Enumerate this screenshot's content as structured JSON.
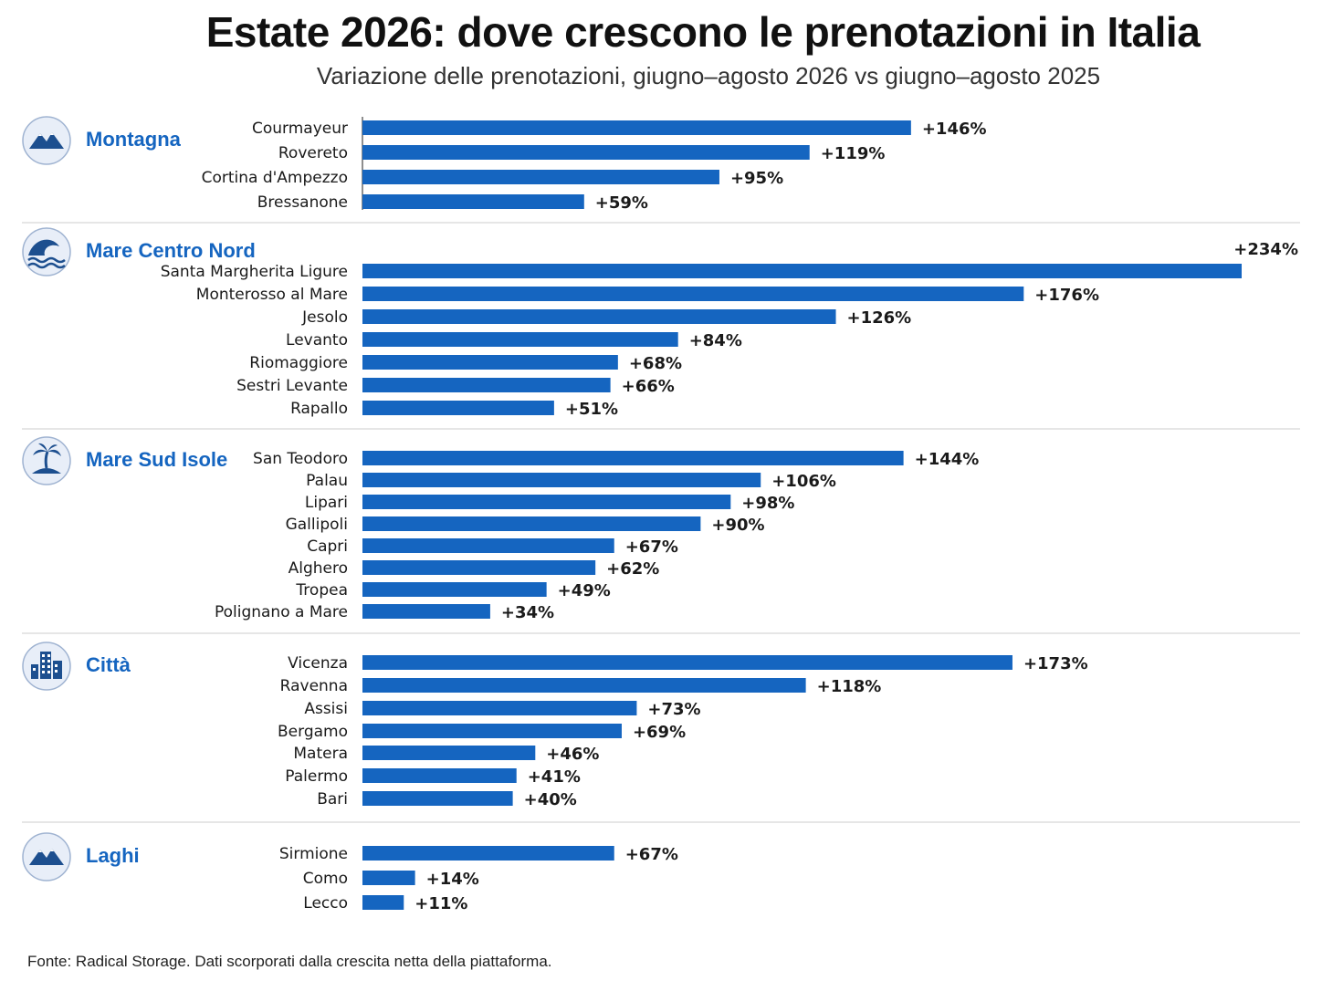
{
  "chart_data": {
    "type": "bar",
    "orientation": "horizontal",
    "title": "Estate 2026: dove crescono le prenotazioni in Italia",
    "subtitle": "Variazione delle prenotazioni, giugno–agosto 2026 vs giugno–agosto 2025",
    "source": "Fonte: Radical Storage. Dati scorporati dalla crescita netta della piattaforma.",
    "value_prefix": "+",
    "value_suffix": "%",
    "xlim": [
      0,
      234
    ],
    "grid": false,
    "colors": {
      "bar": "#1565c0",
      "group_label": "#1565c0",
      "icon": "#1d4f8f",
      "icon_bg": "#e8eef8",
      "divider": "#d6d6d6"
    },
    "groups": [
      {
        "name": "Montagna",
        "icon": "mountain-icon",
        "categories": [
          "Courmayeur",
          "Rovereto",
          "Cortina d'Ampezzo",
          "Bressanone"
        ],
        "values": [
          146,
          119,
          95,
          59
        ]
      },
      {
        "name": "Mare Centro Nord",
        "icon": "wave-icon",
        "categories": [
          "Santa Margherita Ligure",
          "Monterosso al Mare",
          "Jesolo",
          "Levanto",
          "Riomaggiore",
          "Sestri Levante",
          "Rapallo"
        ],
        "values": [
          234,
          176,
          126,
          84,
          68,
          66,
          51
        ]
      },
      {
        "name": "Mare Sud Isole",
        "icon": "palm-island-icon",
        "categories": [
          "San Teodoro",
          "Palau",
          "Lipari",
          "Gallipoli",
          "Capri",
          "Alghero",
          "Tropea",
          "Polignano a Mare"
        ],
        "values": [
          144,
          106,
          98,
          90,
          67,
          62,
          49,
          34
        ]
      },
      {
        "name": "Città",
        "icon": "city-icon",
        "categories": [
          "Vicenza",
          "Ravenna",
          "Assisi",
          "Bergamo",
          "Matera",
          "Palermo",
          "Bari"
        ],
        "values": [
          173,
          118,
          73,
          69,
          46,
          41,
          40
        ]
      },
      {
        "name": "Laghi",
        "icon": "mountain-lake-icon",
        "categories": [
          "Sirmione",
          "Como",
          "Lecco"
        ],
        "values": [
          67,
          14,
          11
        ]
      }
    ]
  }
}
